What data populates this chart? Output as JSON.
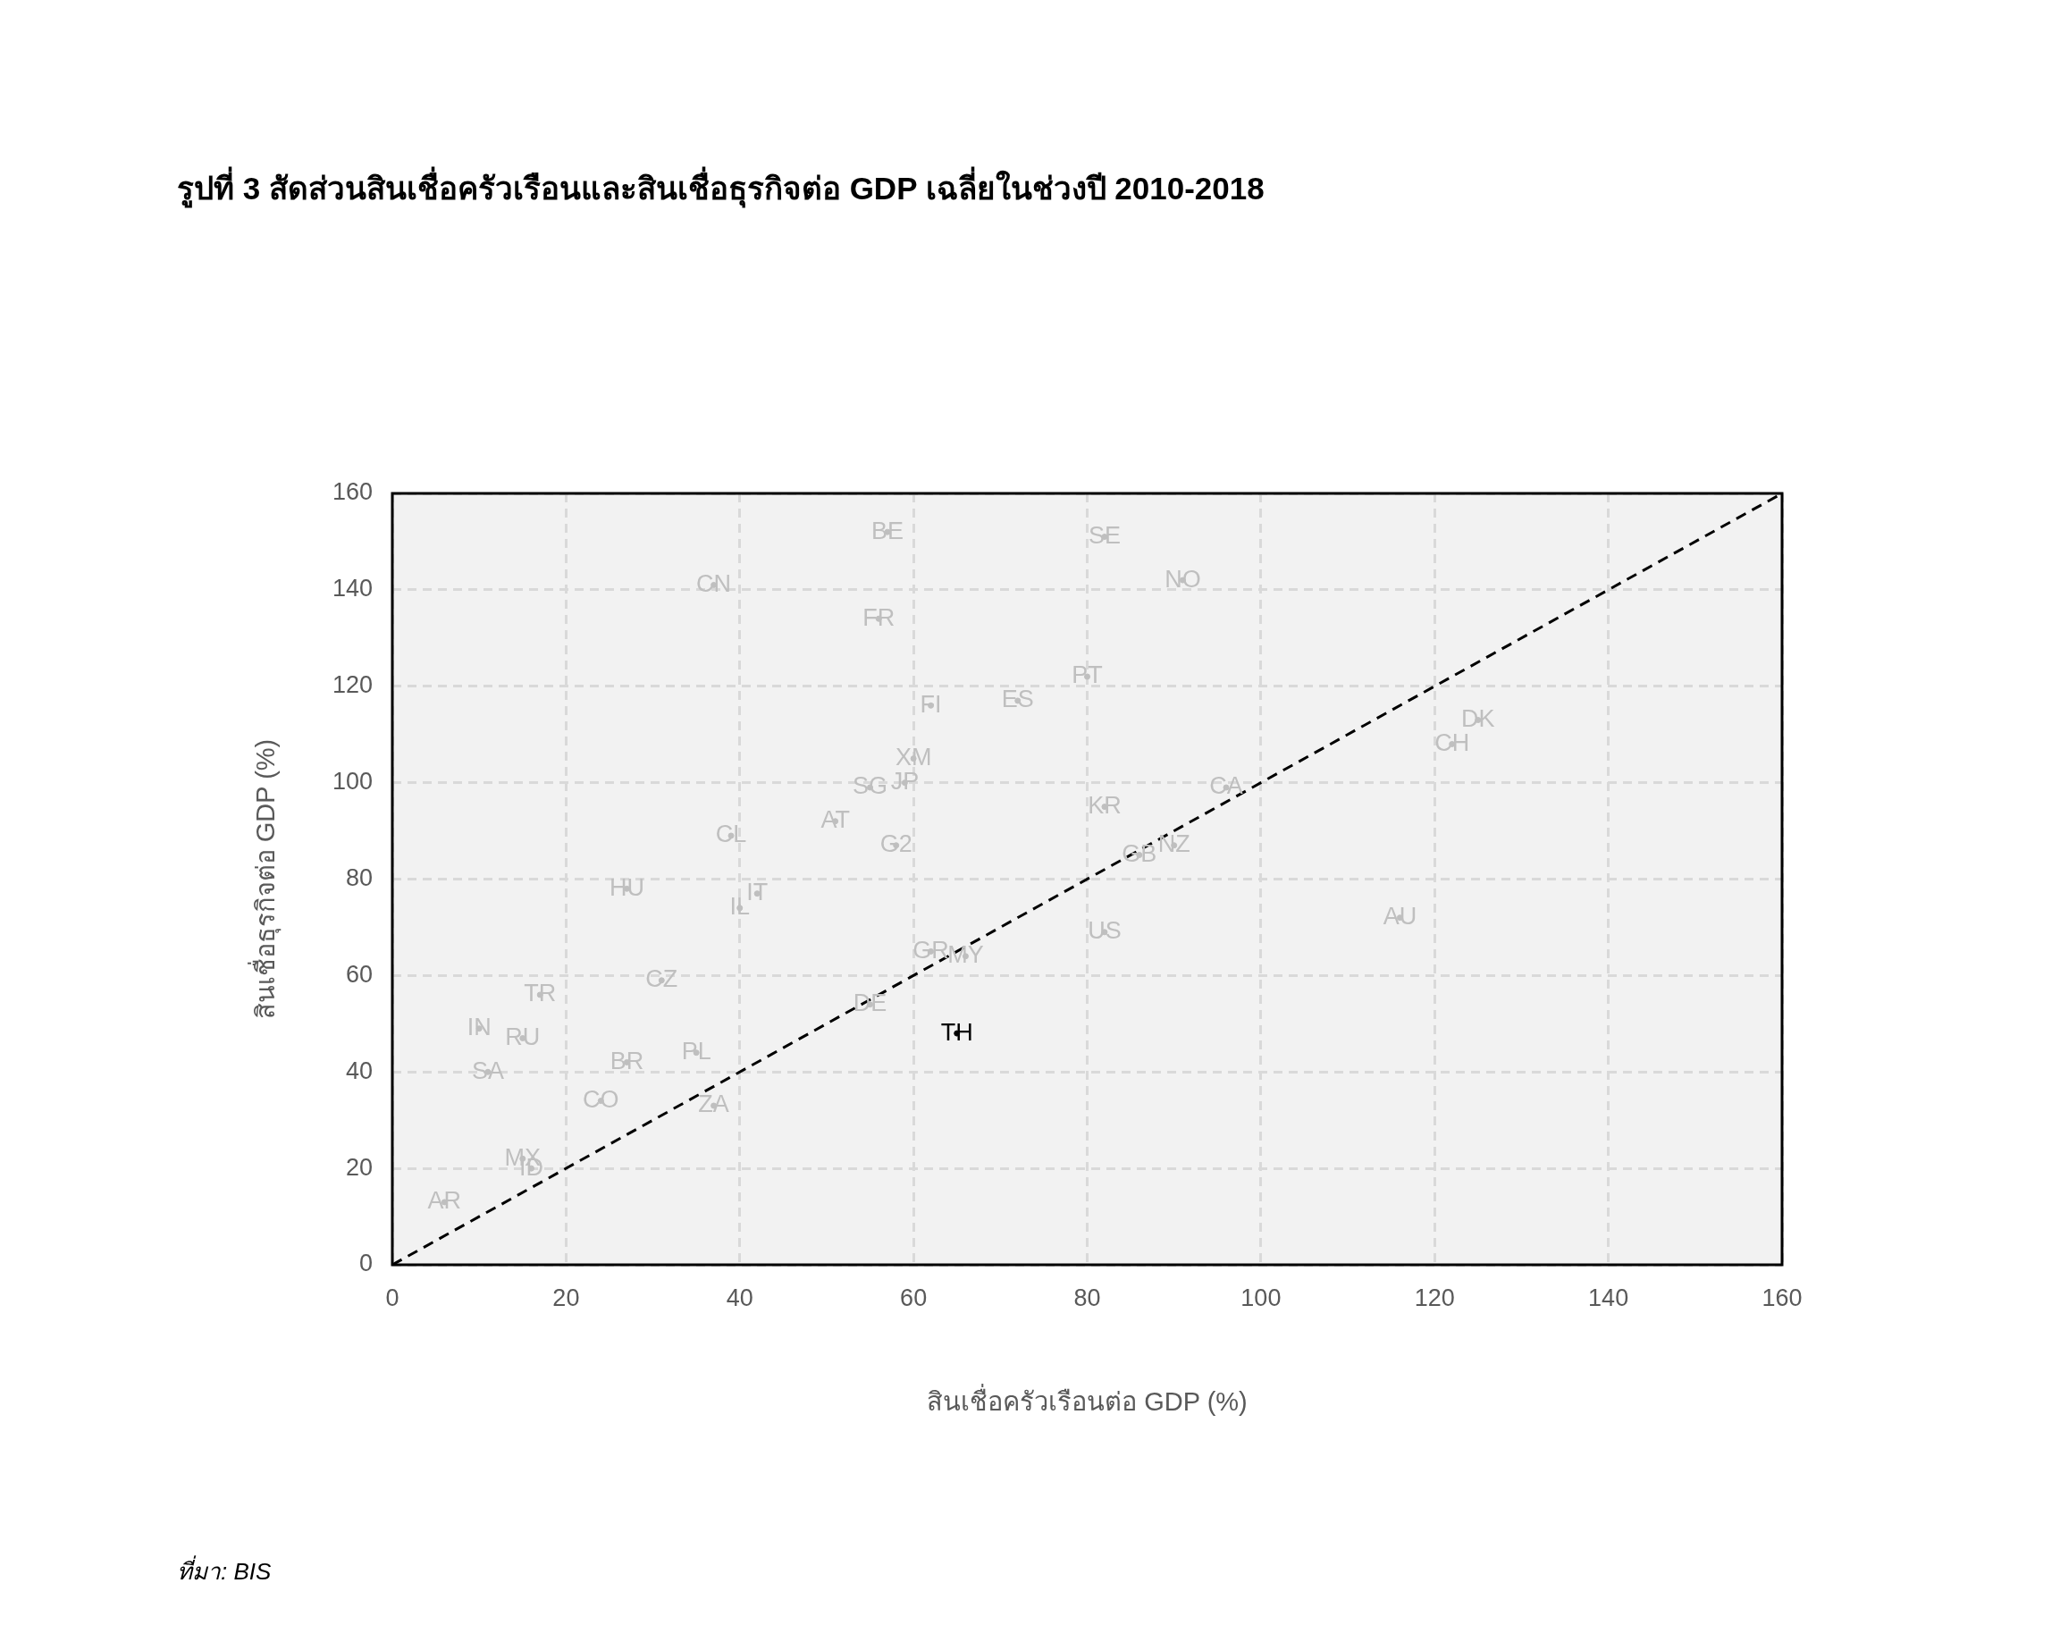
{
  "chart_data": {
    "type": "scatter",
    "title": "รูปที่ 3 สัดส่วนสินเชื่อครัวเรือนและสินเชื่อธุรกิจต่อ GDP เฉลี่ยในช่วงปี 2010-2018",
    "xlabel": "สินเชื่อครัวเรือนต่อ GDP (%)",
    "ylabel": "สินเชื่อธุรกิจต่อ GDP (%)",
    "annotations": [
      "ที่มา: BIS"
    ],
    "xlim": [
      0,
      160
    ],
    "ylim": [
      0,
      160
    ],
    "xticks": [
      0,
      20,
      40,
      60,
      80,
      100,
      120,
      140,
      160
    ],
    "yticks": [
      0,
      20,
      40,
      60,
      80,
      100,
      120,
      140,
      160
    ],
    "grid": true,
    "legend": false,
    "series": [
      {
        "color": "#bfbfbf",
        "marker": "circle",
        "x": [
          57,
          82,
          91,
          37,
          56,
          80,
          72,
          62,
          125,
          122,
          60,
          96,
          59,
          55,
          82,
          51,
          39,
          58,
          90,
          86,
          27,
          42,
          40,
          116,
          82,
          62,
          66,
          31,
          17,
          55,
          10,
          15,
          35,
          27,
          11,
          24,
          37,
          15,
          16,
          6
        ],
        "values": [
          152,
          151,
          142,
          141,
          134,
          122,
          117,
          116,
          113,
          108,
          105,
          99,
          100,
          99,
          95,
          92,
          89,
          87,
          87,
          85,
          78,
          77,
          74,
          72,
          69,
          65,
          64,
          59,
          56,
          54,
          49,
          47,
          44,
          42,
          40,
          34,
          33,
          22,
          20,
          13
        ],
        "value_labels": [
          "BE",
          "SE",
          "NO",
          "CN",
          "FR",
          "PT",
          "ES",
          "FI",
          "DK",
          "CH",
          "XM",
          "CA",
          "JP",
          "SG",
          "KR",
          "AT",
          "CL",
          "G2",
          "NZ",
          "GB",
          "HU",
          "IT",
          "IL",
          "AU",
          "US",
          "GR",
          "MY",
          "CZ",
          "TR",
          "DE",
          "IN",
          "RU",
          "PL",
          "BR",
          "SA",
          "CO",
          "ZA",
          "MX",
          "ID",
          "AR"
        ]
      },
      {
        "color": "#000000",
        "marker": "circle",
        "x": [
          65
        ],
        "values": [
          48
        ],
        "value_labels": [
          "TH"
        ]
      },
      {
        "type": "line",
        "marker": "none",
        "color": "#000000",
        "line_style": "dashed",
        "x": [
          0,
          160
        ],
        "values": [
          0,
          160
        ]
      }
    ]
  }
}
